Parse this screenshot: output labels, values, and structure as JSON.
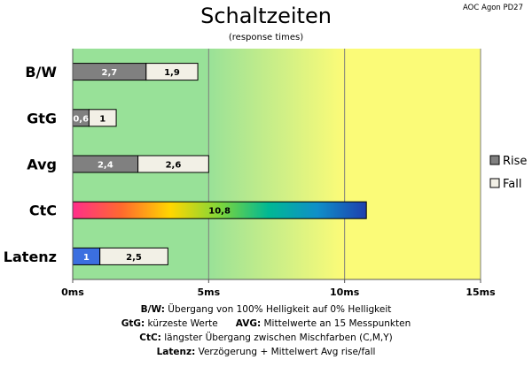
{
  "corner_label": "AOC Agon PD27",
  "colors": {
    "rise": "#808080",
    "fall": "#f2f0e6",
    "latenz_rise": "#3b6fe0",
    "zone_green": "#98e198",
    "zone_yellow": "#fbfb78",
    "ctc_gradient": [
      "#ff2d8a",
      "#ff6a2e",
      "#ffd700",
      "#7fd63a",
      "#00b894",
      "#0f8fc8",
      "#1e3fae"
    ]
  },
  "notes": [
    {
      "parts": [
        {
          "label": "B/W:",
          "text": " Übergang von 100% Helligkeit auf 0% Helligkeit"
        }
      ]
    },
    {
      "parts": [
        {
          "label": "GtG:",
          "text": " kürzeste Werte"
        },
        {
          "label": "AVG:",
          "text": " Mittelwerte an 15 Messpunkten"
        }
      ]
    },
    {
      "parts": [
        {
          "label": "CtC:",
          "text": " längster Übergang zwischen Mischfarben (C,M,Y)"
        }
      ]
    },
    {
      "parts": [
        {
          "label": "Latenz:",
          "text": " Verzögerung + Mittelwert Avg rise/fall"
        }
      ]
    }
  ],
  "chart_data": {
    "type": "bar",
    "orientation": "horizontal",
    "stacked": true,
    "title": "Schaltzeiten",
    "subtitle": "(response times)",
    "categories": [
      "B/W",
      "GtG",
      "Avg",
      "CtC",
      "Latenz"
    ],
    "series": [
      {
        "name": "Rise",
        "values": [
          2.7,
          0.6,
          2.4,
          10.8,
          1
        ],
        "labels": [
          "2,7",
          "0,6",
          "2,4",
          "10,8",
          "1"
        ]
      },
      {
        "name": "Fall",
        "values": [
          1.9,
          1,
          2.6,
          null,
          2.5
        ],
        "labels": [
          "1,9",
          "1",
          "2,6",
          "",
          "2,5"
        ]
      }
    ],
    "xlim": [
      0,
      15
    ],
    "xticks": [
      0,
      5,
      10,
      15
    ],
    "xtick_labels": [
      "0ms",
      "5ms",
      "10ms",
      "15ms"
    ],
    "grid": "vertical",
    "legend": {
      "placement": "right",
      "entries": [
        "Rise",
        "Fall"
      ]
    },
    "background": "gradient green to yellow"
  }
}
